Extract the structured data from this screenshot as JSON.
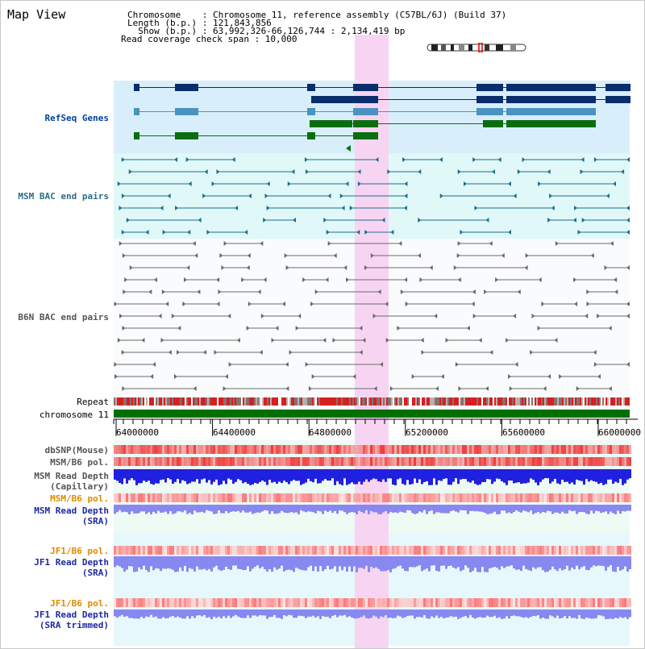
{
  "header": {
    "title": "Map View",
    "chromosome_line": "Chromosome    : Chromosome 11, reference assembly (C57BL/6J) (Build 37)",
    "length_line": "Length (b.p.) : 121,843,856",
    "show_line": "  Show (b.p.) : 63,992,326-66,126,744 : 2,134,419 bp",
    "coverage_line": "Read coverage check span : 10,000"
  },
  "tracks": {
    "refseq": "RefSeq Genes",
    "msm_bac": "MSM BAC end pairs",
    "b6n_bac": "B6N BAC end pairs",
    "repeat": "Repeat",
    "chromosome": "chromosome 11",
    "dbsnp": "dbSNP(Mouse)",
    "msm_b6_pol1": "MSM/B6 pol.",
    "msm_depth_cap_1": "MSM Read Depth",
    "msm_depth_cap_2": "(Capillary)",
    "msm_b6_pol2": "MSM/B6 pol.",
    "msm_depth_sra_1": "MSM Read Depth",
    "msm_depth_sra_2": "(SRA)",
    "jf1_b6_pol1": "JF1/B6 pol.",
    "jf1_depth_sra_1": "JF1 Read Depth",
    "jf1_depth_sra_2": "(SRA)",
    "jf1_b6_pol2": "JF1/B6 pol.",
    "jf1_depth_trim_1": "JF1 Read Depth",
    "jf1_depth_trim_2": "(SRA trimmed)"
  },
  "axis": {
    "ticks": [
      "64000000",
      "64400000",
      "64800000",
      "65200000",
      "65600000",
      "66000000"
    ]
  },
  "colors": {
    "highlight": "#f7d5f2",
    "refseq_bg": "#d8eefa",
    "msm_bac_bg": "#e0f8f8",
    "chromosome": "#007000",
    "gene_dark": "#0a2d6b",
    "gene_mid": "#4a93c0",
    "gene_green": "#0a6e10",
    "snp": "#f08080",
    "pol_msm": "#ff5a5a",
    "depth_cap": "#2020e0",
    "depth_sra": "#8888f0",
    "pol_jf1": "#ff9a9a"
  }
}
